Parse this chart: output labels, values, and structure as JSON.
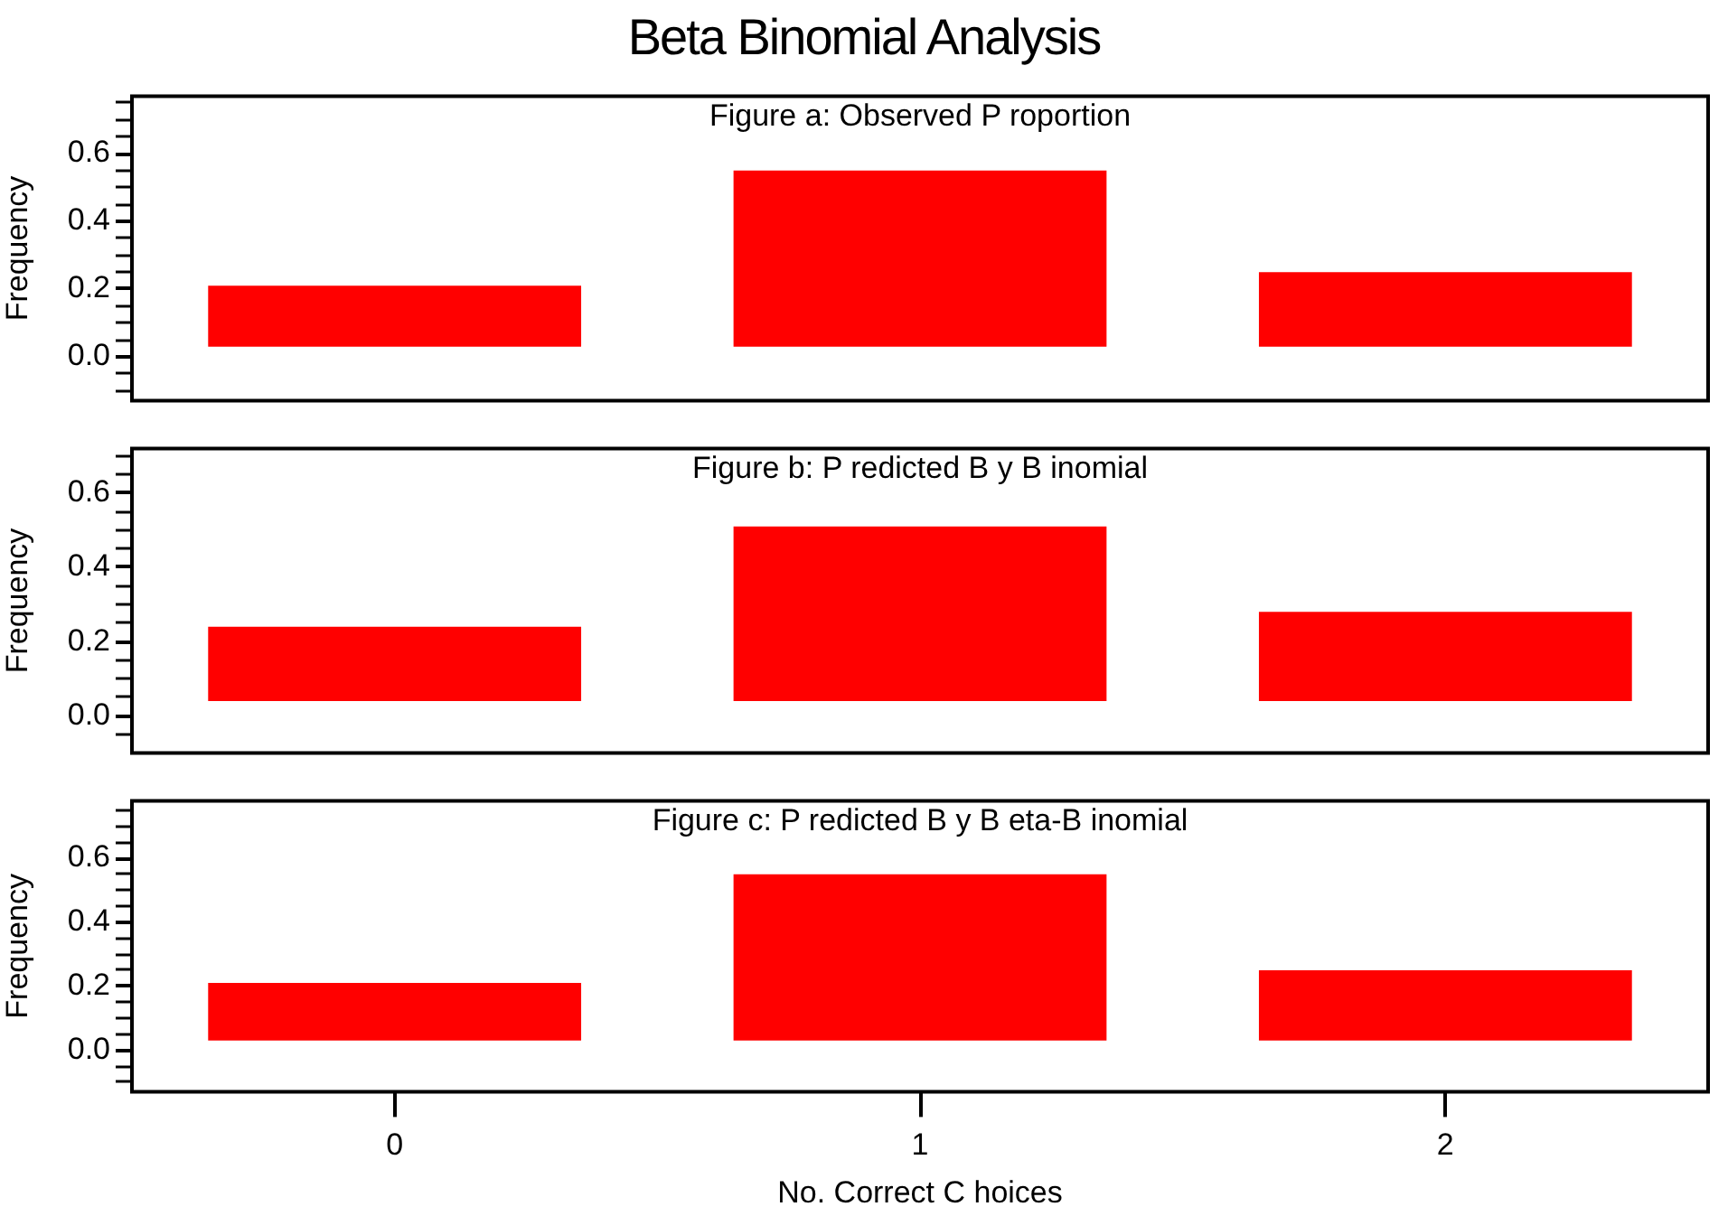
{
  "chart_data": [
    {
      "type": "bar",
      "title": "Beta Binomial Analysis",
      "subtitle": "Figure a: Observed P roportion",
      "ylabel": "Frequency",
      "categories": [
        "0",
        "1",
        "2"
      ],
      "tick_labels": "y",
      "series": [
        {
          "color": "#ff0000",
          "values": [
            0.18,
            0.52,
            0.22
          ],
          "base": [
            0.03,
            0.03,
            0.03
          ]
        }
      ],
      "ylim": [
        -0.13,
        0.77
      ],
      "yticks": [
        {
          "value": -0.1,
          "label": null
        },
        {
          "value": -0.05,
          "label": null
        },
        "0.0",
        {
          "value": 0.05,
          "label": null
        },
        {
          "value": 0.1,
          "label": null
        },
        {
          "value": 0.15,
          "label": null
        },
        0.2,
        {
          "value": 0.25,
          "label": null
        },
        {
          "value": 0.3,
          "label": null
        },
        {
          "value": 0.35,
          "label": null
        },
        0.4,
        {
          "value": 0.45,
          "label": null
        },
        {
          "value": 0.5,
          "label": null
        },
        {
          "value": 0.55,
          "label": null
        },
        0.6,
        {
          "value": 0.65,
          "label": null
        },
        {
          "value": 0.7,
          "label": null
        },
        {
          "value": 0.75,
          "label": null
        }
      ],
      "grid": false,
      "legend": false
    },
    {
      "type": "bar",
      "subtitle": "Figure b: P redicted B y B inomial",
      "ylabel": "Frequency",
      "categories": [
        "0",
        "1",
        "2"
      ],
      "tick_labels": "y",
      "series": [
        {
          "color": "#ff0000",
          "values": [
            0.2,
            0.47,
            0.24
          ],
          "base": [
            0.04,
            0.04,
            0.04
          ]
        }
      ],
      "ylim": [
        -0.1,
        0.72
      ],
      "yticks": [
        {
          "value": -0.05,
          "label": null
        },
        "0.0",
        {
          "value": 0.05,
          "label": null
        },
        {
          "value": 0.1,
          "label": null
        },
        {
          "value": 0.15,
          "label": null
        },
        0.2,
        {
          "value": 0.25,
          "label": null
        },
        {
          "value": 0.3,
          "label": null
        },
        {
          "value": 0.35,
          "label": null
        },
        0.4,
        {
          "value": 0.45,
          "label": null
        },
        {
          "value": 0.5,
          "label": null
        },
        {
          "value": 0.55,
          "label": null
        },
        0.6,
        {
          "value": 0.65,
          "label": null
        },
        {
          "value": 0.7,
          "label": null
        }
      ],
      "grid": false,
      "legend": false
    },
    {
      "type": "bar",
      "subtitle": "Figure c: P redicted B y B eta-B inomial",
      "ylabel": "Frequency",
      "xlabel": "No. Correct C hoices",
      "categories": [
        "0",
        "1",
        "2"
      ],
      "series": [
        {
          "color": "#ff0000",
          "values": [
            0.18,
            0.52,
            0.22
          ],
          "base": [
            0.03,
            0.03,
            0.03
          ]
        }
      ],
      "ylim": [
        -0.13,
        0.78
      ],
      "yticks": [
        {
          "value": -0.1,
          "label": null
        },
        {
          "value": -0.05,
          "label": null
        },
        "0.0",
        {
          "value": 0.05,
          "label": null
        },
        {
          "value": 0.1,
          "label": null
        },
        {
          "value": 0.15,
          "label": null
        },
        0.2,
        {
          "value": 0.25,
          "label": null
        },
        {
          "value": 0.3,
          "label": null
        },
        {
          "value": 0.35,
          "label": null
        },
        0.4,
        {
          "value": 0.45,
          "label": null
        },
        {
          "value": 0.5,
          "label": null
        },
        {
          "value": 0.55,
          "label": null
        },
        0.6,
        {
          "value": 0.65,
          "label": null
        },
        {
          "value": 0.7,
          "label": null
        },
        {
          "value": 0.75,
          "label": null
        }
      ],
      "grid": false,
      "legend": false
    }
  ]
}
